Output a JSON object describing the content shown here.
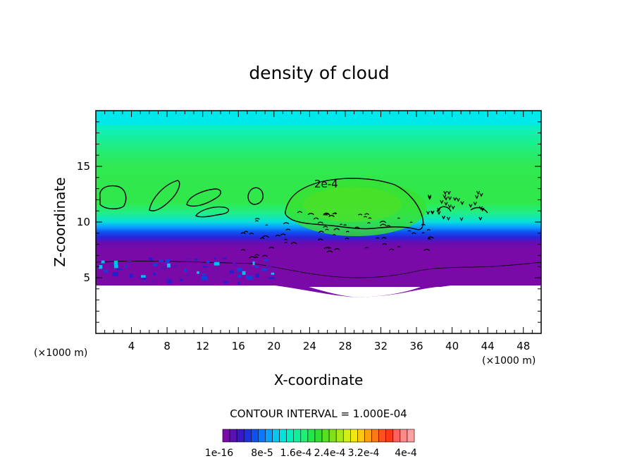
{
  "chart_data": {
    "type": "heatmap",
    "title": "density of cloud",
    "xlabel": "X-coordinate",
    "ylabel": "Z-coordinate",
    "x_unit": "(×1000 m)",
    "x_unit_right": "(×1000 m)",
    "xlim": [
      0,
      50
    ],
    "ylim": [
      0,
      20
    ],
    "x_ticks": [
      4,
      8,
      12,
      16,
      20,
      24,
      28,
      32,
      36,
      40,
      44,
      48
    ],
    "y_ticks": [
      5,
      10,
      15
    ],
    "contour_interval_text": "CONTOUR INTERVAL = 1.000E-04",
    "contour_label": "2e-4",
    "cloud_base_km": 4.5,
    "cloud_top_km": 20,
    "core": {
      "x_range": [
        21,
        37
      ],
      "z_range": [
        9,
        14.5
      ],
      "max_value": 0.0002
    },
    "colorbar": {
      "labels": [
        "1e-16",
        "8e-5",
        "1.6e-4",
        "2.4e-4",
        "3.2e-4",
        "4e-4"
      ],
      "colors": [
        "#7a0aa8",
        "#5a10b4",
        "#3a18c8",
        "#2030dc",
        "#1050f0",
        "#0a78ff",
        "#0aa0ff",
        "#06c8f0",
        "#00e4e0",
        "#00f0c0",
        "#10f09a",
        "#20f074",
        "#20e848",
        "#30e030",
        "#58e020",
        "#80e018",
        "#a8e818",
        "#d0f018",
        "#f0e810",
        "#ffc810",
        "#ffa010",
        "#ff7818",
        "#ff5020",
        "#ff3818",
        "#ff6060",
        "#ff8888",
        "#ffa0a0"
      ]
    }
  }
}
